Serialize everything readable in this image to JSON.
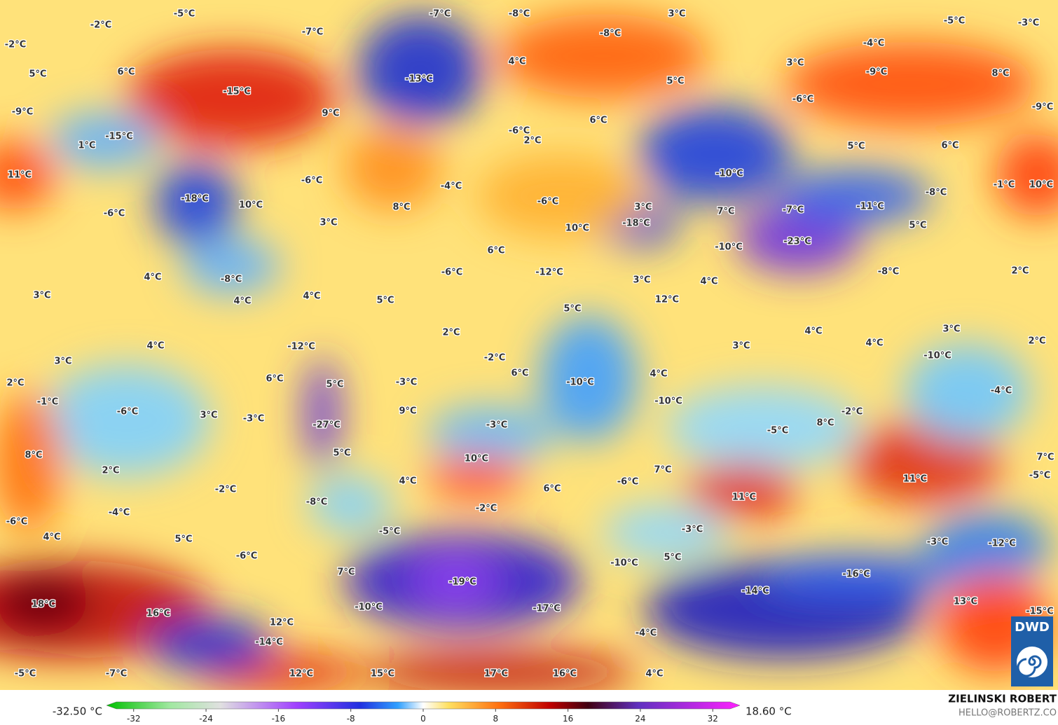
{
  "map": {
    "labels": [
      "-5°C",
      "-7°C",
      "-8°C",
      "3°C",
      "-5°C",
      "-3°C",
      "-2°C",
      "-7°C",
      "-8°C",
      "-2°C",
      "-4°C",
      "4°C",
      "3°C",
      "-9°C",
      "8°C",
      "5°C",
      "6°C",
      "-13°C",
      "5°C",
      "-15°C",
      "-6°C",
      "-9°C",
      "-9°C",
      "9°C",
      "6°C",
      "-6°C",
      "-15°C",
      "2°C",
      "5°C",
      "6°C",
      "1°C",
      "11°C",
      "-10°C",
      "-6°C",
      "-4°C",
      "-1°C",
      "10°C",
      "-18°C",
      "-8°C",
      "10°C",
      "8°C",
      "-6°C",
      "3°C",
      "7°C",
      "-7°C",
      "-11°C",
      "-6°C",
      "3°C",
      "-18°C",
      "10°C",
      "5°C",
      "-23°C",
      "-10°C",
      "6°C",
      "-6°C",
      "-12°C",
      "-8°C",
      "2°C",
      "4°C",
      "-8°C",
      "3°C",
      "4°C",
      "3°C",
      "4°C",
      "4°C",
      "5°C",
      "12°C",
      "5°C",
      "4°C",
      "3°C",
      "2°C",
      "3°C",
      "2°C",
      "4°C",
      "-12°C",
      "4°C",
      "3°C",
      "-2°C",
      "-10°C",
      "6°C",
      "6°C",
      "-10°C",
      "4°C",
      "-3°C",
      "5°C",
      "2°C",
      "-4°C",
      "-1°C",
      "-10°C",
      "-6°C",
      "3°C",
      "-3°C",
      "9°C",
      "-2°C",
      "-27°C",
      "-3°C",
      "8°C",
      "-5°C",
      "5°C",
      "8°C",
      "10°C",
      "7°C",
      "2°C",
      "7°C",
      "-5°C",
      "4°C",
      "-6°C",
      "6°C",
      "11°C",
      "-2°C",
      "-2°C",
      "11°C",
      "-8°C",
      "-4°C",
      "-6°C",
      "-5°C",
      "-3°C",
      "4°C",
      "5°C",
      "-3°C",
      "-12°C",
      "-6°C",
      "5°C",
      "-10°C",
      "7°C",
      "-16°C",
      "-19°C",
      "-14°C",
      "-10°C",
      "-17°C",
      "13°C",
      "-15°C",
      "18°C",
      "16°C",
      "12°C",
      "-14°C",
      "-4°C",
      "-5°C",
      "-7°C",
      "12°C",
      "15°C",
      "17°C",
      "16°C",
      "4°C"
    ]
  },
  "colorbar": {
    "min_label": "-32.50 °C",
    "max_label": "18.60 °C",
    "range": [
      -35,
      35
    ],
    "ticks": [
      -32,
      -24,
      -16,
      -8,
      0,
      8,
      16,
      24,
      32
    ]
  },
  "credit": {
    "author": "ZIELINSKI ROBERT",
    "email": "HELLO@ROBERTZ.CO"
  },
  "logo": "DWD"
}
